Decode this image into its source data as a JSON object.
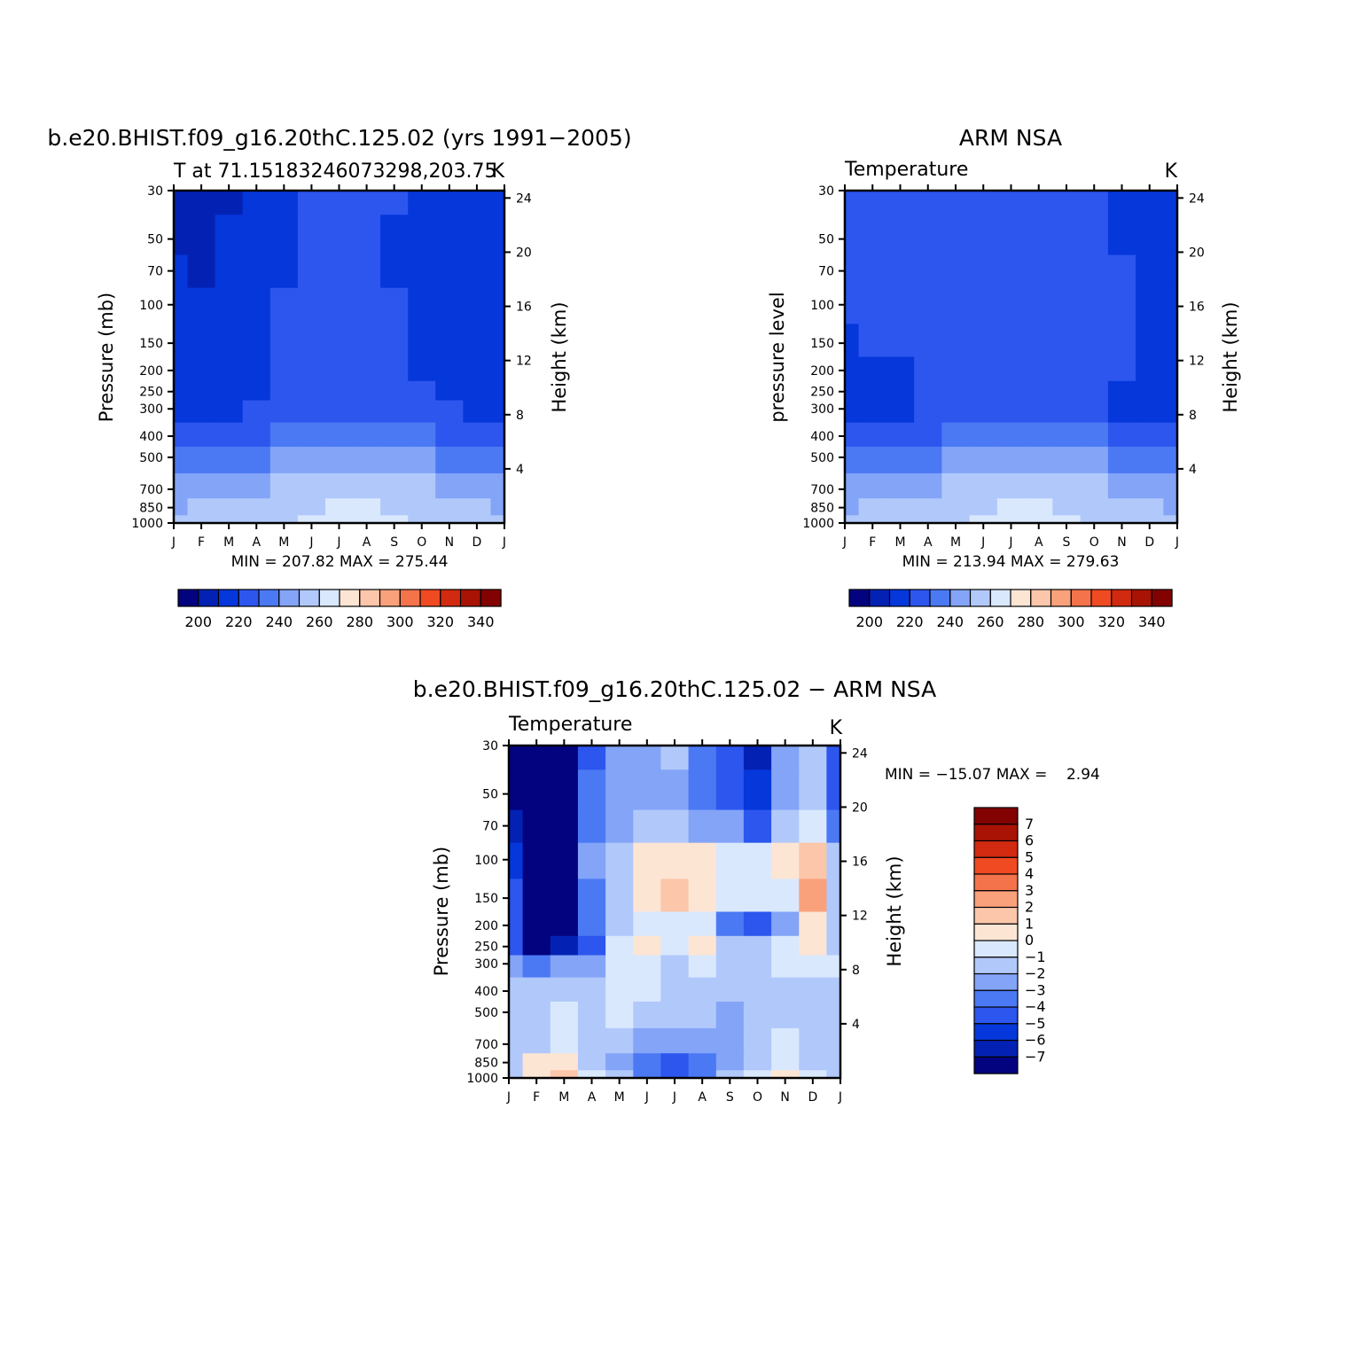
{
  "palette": {
    "temperature": [
      "#03037f",
      "#0322b4",
      "#0537db",
      "#2c56ee",
      "#4b79f4",
      "#83a4f7",
      "#b1c8fa",
      "#d9e8fd",
      "#fde5d4",
      "#fcc6aa",
      "#f9a17b",
      "#f5734b",
      "#f04a22",
      "#d12a10",
      "#a81306",
      "#820202"
    ],
    "difference": [
      "#03037f",
      "#0322b4",
      "#0537db",
      "#2c56ee",
      "#4b79f4",
      "#83a4f7",
      "#b1c8fa",
      "#d9e8fd",
      "#fde5d4",
      "#fcc6aa",
      "#f9a17b",
      "#f5734b",
      "#f04a22",
      "#d12a10",
      "#a81306",
      "#820202"
    ]
  },
  "chart_data": [
    {
      "id": "model",
      "type": "heatmap",
      "title": "b.e20.BHIST.f09_g16.20thC.125.02 (yrs 1991−2005)",
      "subtitle_left": "T at 71.15183246073298,203.75",
      "subtitle_right": "K",
      "ylabel": "Pressure (mb)",
      "ylabel_right": "Height (km)",
      "x_ticks": [
        "J",
        "F",
        "M",
        "A",
        "M",
        "J",
        "J",
        "A",
        "S",
        "O",
        "N",
        "D",
        "J"
      ],
      "y_ticks": [
        "30",
        "50",
        "70",
        "100",
        "150",
        "200",
        "250",
        "300",
        "400",
        "500",
        "700",
        "850",
        "1000"
      ],
      "y_ticks_right": [
        "24",
        "20",
        "16",
        "12",
        "8",
        "4"
      ],
      "stats": "MIN = 207.82 MAX = 275.44",
      "colorbar": {
        "orientation": "horizontal",
        "labels": [
          "200",
          "220",
          "240",
          "260",
          "280",
          "300",
          "320",
          "340"
        ]
      },
      "rows": [
        {
          "p": 1000,
          "v": [
            257,
            258,
            259,
            260,
            262,
            265,
            268,
            270,
            268,
            264,
            259,
            258,
            257
          ]
        },
        {
          "p": 850,
          "v": [
            254,
            255,
            256,
            258,
            260,
            263,
            265,
            266,
            264,
            260,
            257,
            255,
            254
          ]
        },
        {
          "p": 700,
          "v": [
            250,
            250,
            251,
            253,
            256,
            259,
            262,
            263,
            260,
            256,
            253,
            251,
            250
          ]
        },
        {
          "p": 500,
          "v": [
            240,
            240,
            241,
            243,
            246,
            249,
            252,
            252,
            249,
            245,
            242,
            241,
            240
          ]
        },
        {
          "p": 400,
          "v": [
            230,
            231,
            232,
            234,
            237,
            240,
            242,
            242,
            239,
            236,
            233,
            231,
            230
          ]
        },
        {
          "p": 300,
          "v": [
            224,
            224,
            224,
            226,
            229,
            231,
            232,
            232,
            230,
            228,
            225,
            224,
            224
          ]
        },
        {
          "p": 250,
          "v": [
            222,
            222,
            222,
            223,
            227,
            228,
            228,
            228,
            227,
            225,
            222,
            222,
            222
          ]
        },
        {
          "p": 200,
          "v": [
            221,
            221,
            221,
            222,
            226,
            227,
            227,
            227,
            226,
            224,
            222,
            221,
            221
          ]
        },
        {
          "p": 150,
          "v": [
            220,
            220,
            221,
            222,
            225,
            226,
            226,
            226,
            225,
            224,
            222,
            221,
            220
          ]
        },
        {
          "p": 100,
          "v": [
            219,
            218,
            219,
            222,
            225,
            226,
            226,
            226,
            225,
            224,
            221,
            220,
            219
          ]
        },
        {
          "p": 70,
          "v": [
            216,
            214,
            217,
            221,
            224,
            225,
            225,
            225,
            224,
            222,
            221,
            219,
            218
          ]
        },
        {
          "p": 50,
          "v": [
            213,
            212,
            215,
            220,
            224,
            225,
            225,
            225,
            224,
            221,
            219,
            218,
            217
          ]
        },
        {
          "p": 30,
          "v": [
            212,
            211,
            214,
            220,
            224,
            226,
            226,
            226,
            225,
            221,
            219,
            217,
            216
          ]
        }
      ]
    },
    {
      "id": "obs",
      "type": "heatmap",
      "title": "ARM NSA",
      "subtitle_left": "Temperature",
      "subtitle_right": "K",
      "ylabel": "pressure level",
      "ylabel_right": "Height (km)",
      "x_ticks": [
        "J",
        "F",
        "M",
        "A",
        "M",
        "J",
        "J",
        "A",
        "S",
        "O",
        "N",
        "D",
        "J"
      ],
      "y_ticks": [
        "30",
        "50",
        "70",
        "100",
        "150",
        "200",
        "250",
        "300",
        "400",
        "500",
        "700",
        "850",
        "1000"
      ],
      "y_ticks_right": [
        "24",
        "20",
        "16",
        "12",
        "8",
        "4"
      ],
      "stats": "MIN = 213.94 MAX = 279.63",
      "colorbar": {
        "orientation": "horizontal",
        "labels": [
          "200",
          "220",
          "240",
          "260",
          "280",
          "300",
          "320",
          "340"
        ]
      },
      "rows": [
        {
          "p": 1000,
          "v": [
            258,
            258,
            259,
            261,
            264,
            268,
            271,
            272,
            269,
            264,
            260,
            259,
            258
          ]
        },
        {
          "p": 850,
          "v": [
            254,
            255,
            256,
            258,
            261,
            264,
            266,
            266,
            264,
            260,
            257,
            255,
            254
          ]
        },
        {
          "p": 700,
          "v": [
            250,
            250,
            251,
            253,
            257,
            261,
            263,
            263,
            260,
            256,
            253,
            251,
            250
          ]
        },
        {
          "p": 500,
          "v": [
            240,
            240,
            241,
            243,
            247,
            251,
            254,
            253,
            250,
            246,
            242,
            241,
            240
          ]
        },
        {
          "p": 400,
          "v": [
            230,
            231,
            232,
            234,
            238,
            242,
            244,
            243,
            240,
            236,
            233,
            231,
            230
          ]
        },
        {
          "p": 300,
          "v": [
            224,
            223,
            224,
            226,
            229,
            231,
            233,
            232,
            230,
            227,
            224,
            223,
            224
          ]
        },
        {
          "p": 250,
          "v": [
            222,
            221,
            222,
            225,
            228,
            229,
            229,
            229,
            228,
            226,
            223,
            222,
            222
          ]
        },
        {
          "p": 200,
          "v": [
            221,
            222,
            224,
            227,
            229,
            229,
            229,
            229,
            228,
            227,
            225,
            223,
            222
          ]
        },
        {
          "p": 150,
          "v": [
            224,
            225,
            227,
            228,
            229,
            229,
            229,
            229,
            228,
            227,
            225,
            223,
            223
          ]
        },
        {
          "p": 100,
          "v": [
            226,
            227,
            227,
            228,
            229,
            229,
            229,
            229,
            228,
            227,
            225,
            223,
            222
          ]
        },
        {
          "p": 70,
          "v": [
            226,
            227,
            227,
            228,
            229,
            229,
            229,
            229,
            228,
            227,
            225,
            223,
            221
          ]
        },
        {
          "p": 50,
          "v": [
            226,
            227,
            227,
            228,
            229,
            229,
            229,
            229,
            228,
            226,
            224,
            222,
            220
          ]
        },
        {
          "p": 30,
          "v": [
            226,
            227,
            227,
            228,
            229,
            229,
            229,
            229,
            228,
            225,
            223,
            221,
            219
          ]
        }
      ]
    },
    {
      "id": "diff",
      "type": "heatmap",
      "title": "b.e20.BHIST.f09_g16.20thC.125.02 − ARM NSA",
      "subtitle_left": "Temperature",
      "subtitle_right": "K",
      "ylabel": "Pressure (mb)",
      "ylabel_right": "Height (km)",
      "x_ticks": [
        "J",
        "F",
        "M",
        "A",
        "M",
        "J",
        "J",
        "A",
        "S",
        "O",
        "N",
        "D",
        "J"
      ],
      "y_ticks": [
        "30",
        "50",
        "70",
        "100",
        "150",
        "200",
        "250",
        "300",
        "400",
        "500",
        "700",
        "850",
        "1000"
      ],
      "y_ticks_right": [
        "24",
        "20",
        "16",
        "12",
        "8",
        "4"
      ],
      "stats": "MIN = −15.07 MAX =    2.94",
      "colorbar": {
        "orientation": "vertical",
        "labels": [
          "7",
          "6",
          "5",
          "4",
          "3",
          "2",
          "1",
          "0",
          "−1",
          "−2",
          "−3",
          "−4",
          "−5",
          "−6",
          "−7"
        ]
      },
      "rows": [
        {
          "p": 1000,
          "v": [
            -1.5,
            0.5,
            1.5,
            -0.5,
            -1.5,
            -3.5,
            -4.5,
            -3.5,
            -1.5,
            -0.5,
            0.5,
            -0.5,
            -1.5
          ]
        },
        {
          "p": 850,
          "v": [
            -1.5,
            0.5,
            0.5,
            -1.5,
            -2.5,
            -3.5,
            -4.2,
            -3.8,
            -2.5,
            -1.5,
            -0.5,
            -1.5,
            -1.5
          ]
        },
        {
          "p": 700,
          "v": [
            -1.5,
            -1.5,
            -0.5,
            -1.5,
            -1.5,
            -2.5,
            -2.5,
            -2.5,
            -2.5,
            -1.5,
            -0.5,
            -1.5,
            -1.5
          ]
        },
        {
          "p": 500,
          "v": [
            -1.5,
            -1.5,
            -0.5,
            -1.5,
            -0.5,
            -1.5,
            -1.5,
            -1.5,
            -2.5,
            -1.5,
            -1.5,
            -1.5,
            -1.5
          ]
        },
        {
          "p": 400,
          "v": [
            -1.5,
            -1.5,
            -1.5,
            -1.5,
            -0.5,
            -0.5,
            -1.5,
            -1.5,
            -1.5,
            -1.5,
            -1.5,
            -1.5,
            -1.5
          ]
        },
        {
          "p": 300,
          "v": [
            -2.5,
            -3.5,
            -2.5,
            -2.5,
            -0.5,
            -0.5,
            -1.5,
            -0.5,
            -1.5,
            -1.5,
            -0.5,
            -0.5,
            -0.5
          ]
        },
        {
          "p": 250,
          "v": [
            -4.5,
            -7.5,
            -6.5,
            -4.5,
            -0.5,
            0.5,
            -0.5,
            0.5,
            -1.5,
            -1.5,
            -0.5,
            0.5,
            -1.5
          ]
        },
        {
          "p": 200,
          "v": [
            -4.5,
            -7.5,
            -7.5,
            -3.5,
            -1.5,
            -0.5,
            -0.5,
            -0.5,
            -3.5,
            -4.5,
            -2.5,
            0.5,
            -1.5
          ]
        },
        {
          "p": 150,
          "v": [
            -4.5,
            -7.5,
            -7.5,
            -3.5,
            -1.5,
            0.5,
            1.5,
            0.5,
            -0.5,
            -0.5,
            -0.5,
            2.5,
            -1.5
          ]
        },
        {
          "p": 100,
          "v": [
            -5.5,
            -7.5,
            -7.5,
            -2.5,
            -1.5,
            0.5,
            0.5,
            0.5,
            -0.5,
            -0.5,
            0.5,
            1.5,
            -1.5
          ]
        },
        {
          "p": 70,
          "v": [
            -6.5,
            -7.5,
            -7.5,
            -3.5,
            -2.5,
            -1.5,
            -1.5,
            -2.5,
            -2.5,
            -4.5,
            -1.5,
            -0.5,
            -3.5
          ]
        },
        {
          "p": 50,
          "v": [
            -7.5,
            -7.5,
            -7.5,
            -3.5,
            -2.5,
            -2.5,
            -2.5,
            -3.5,
            -4.5,
            -5.5,
            -2.5,
            -1.5,
            -4.5
          ]
        },
        {
          "p": 30,
          "v": [
            -7.5,
            -7.5,
            -7.5,
            -4.5,
            -2.5,
            -2.5,
            -1.5,
            -3.5,
            -4.5,
            -6.5,
            -2.5,
            -1.5,
            -4.5
          ]
        }
      ]
    }
  ]
}
